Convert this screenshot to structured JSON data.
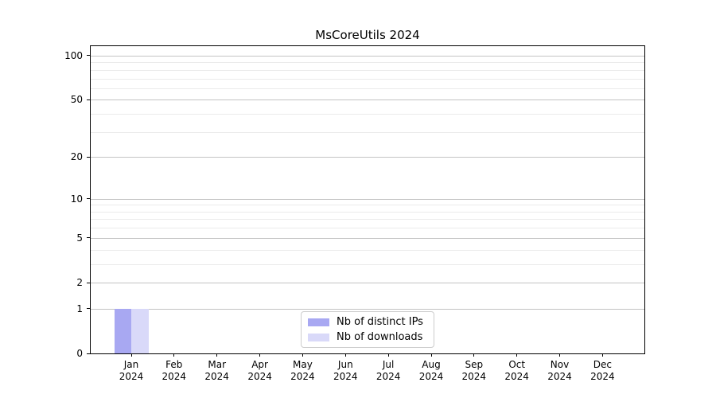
{
  "chart_data": {
    "type": "bar",
    "title": "MsCoreUtils 2024",
    "xlabel": "",
    "ylabel": "",
    "x_months": [
      "Jan",
      "Feb",
      "Mar",
      "Apr",
      "May",
      "Jun",
      "Jul",
      "Aug",
      "Sep",
      "Oct",
      "Nov",
      "Dec"
    ],
    "x_year": "2024",
    "categories": [
      "Jan 2024",
      "Feb 2024",
      "Mar 2024",
      "Apr 2024",
      "May 2024",
      "Jun 2024",
      "Jul 2024",
      "Aug 2024",
      "Sep 2024",
      "Oct 2024",
      "Nov 2024",
      "Dec 2024"
    ],
    "series": [
      {
        "name": "Nb of distinct IPs",
        "color": "#a8a8f2",
        "values": [
          1,
          0,
          0,
          0,
          0,
          0,
          0,
          0,
          0,
          0,
          0,
          0
        ]
      },
      {
        "name": "Nb of downloads",
        "color": "#d9d9f9",
        "values": [
          1,
          0,
          0,
          0,
          0,
          0,
          0,
          0,
          0,
          0,
          0,
          0
        ]
      }
    ],
    "y_axis": {
      "scale": "log1p",
      "ticks": [
        0,
        1,
        2,
        5,
        10,
        20,
        50,
        100
      ],
      "minor_ticks": [
        3,
        4,
        6,
        7,
        8,
        9,
        30,
        40,
        60,
        70,
        80,
        90
      ],
      "max": 116
    },
    "grid": true,
    "legend": {
      "location": "lower center",
      "entries": [
        "Nb of distinct IPs",
        "Nb of downloads"
      ]
    },
    "colors": {
      "major_grid": "#c3c3c3",
      "minor_grid": "#ebebeb",
      "axis": "#000000"
    }
  }
}
